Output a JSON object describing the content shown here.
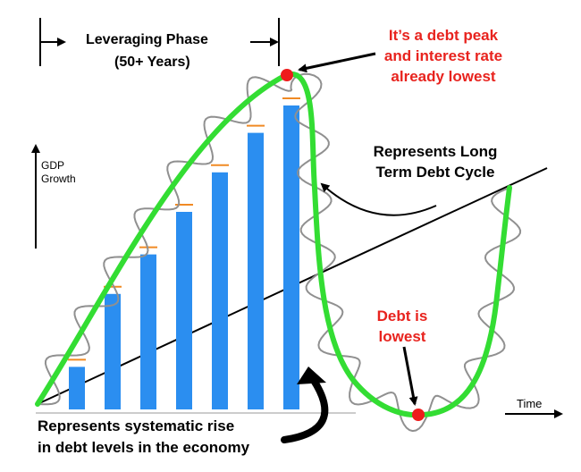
{
  "labels": {
    "phase_title": "Leveraging Phase",
    "phase_years": "(50+ Years)",
    "peak_line1": "It’s a debt peak",
    "peak_line2": "and interest rate",
    "peak_line3": "already lowest",
    "long_term_line1": "Represents Long",
    "long_term_line2": "Term Debt Cycle",
    "debt_low_line1": "Debt is",
    "debt_low_line2": "lowest",
    "y_axis_line1": "GDP",
    "y_axis_line2": "Growth",
    "x_axis": "Time",
    "bars_note_line1": "Represents systematic rise",
    "bars_note_line2": "in debt levels in the economy"
  },
  "colors": {
    "long_term_curve": "#33dd33",
    "short_term_wave": "#909090",
    "debt_bars": "#2b8ef0",
    "bar_markers": "#f08a24",
    "highlight_dots": "#ee1c1c",
    "callout_text": "#e8231e"
  },
  "debt_bars": {
    "count": 7,
    "relative_heights": [
      0.14,
      0.38,
      0.51,
      0.65,
      0.78,
      0.91,
      1.0
    ]
  }
}
